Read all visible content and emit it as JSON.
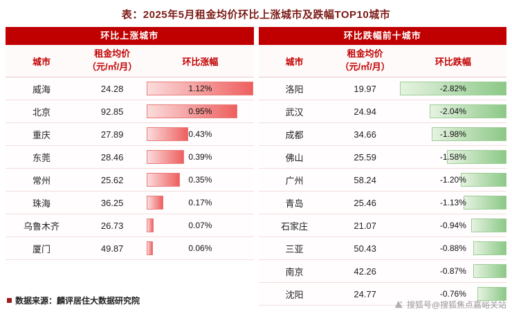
{
  "title": "表：2025年5月租金均价环比上涨城市及跌幅TOP10城市",
  "colors": {
    "header_bg": "#c00000",
    "header_text": "#ffffff",
    "subheader_text": "#c00000",
    "title_text": "#7b1a15",
    "rise_bar_gradient": [
      "#fbdcdc",
      "#ee5f5f"
    ],
    "fall_bar_gradient": [
      "#e6f3e1",
      "#8cc887"
    ],
    "row_divider": "#f3dddd"
  },
  "tables": {
    "rise": {
      "title": "环比上涨城市",
      "columns": {
        "city": "城市",
        "price_line1": "租金均价",
        "price_line2": "（元/㎡/月）",
        "change": "环比涨幅"
      },
      "rows": [
        {
          "city": "威海",
          "price": "24.28",
          "change": "1.12%",
          "value": 1.12
        },
        {
          "city": "北京",
          "price": "92.85",
          "change": "0.95%",
          "value": 0.95
        },
        {
          "city": "重庆",
          "price": "27.89",
          "change": "0.43%",
          "value": 0.43
        },
        {
          "city": "东莞",
          "price": "28.46",
          "change": "0.39%",
          "value": 0.39
        },
        {
          "city": "常州",
          "price": "25.62",
          "change": "0.35%",
          "value": 0.35
        },
        {
          "city": "珠海",
          "price": "36.25",
          "change": "0.17%",
          "value": 0.17
        },
        {
          "city": "乌鲁木齐",
          "price": "26.73",
          "change": "0.07%",
          "value": 0.07
        },
        {
          "city": "厦门",
          "price": "49.87",
          "change": "0.06%",
          "value": 0.06
        }
      ]
    },
    "fall": {
      "title": "环比跌幅前十城市",
      "columns": {
        "city": "城市",
        "price_line1": "租金均价",
        "price_line2": "（元/㎡/月）",
        "change": "环比跌幅"
      },
      "rows": [
        {
          "city": "洛阳",
          "price": "19.97",
          "change": "-2.82%",
          "value": -2.82
        },
        {
          "city": "武汉",
          "price": "24.94",
          "change": "-2.04%",
          "value": -2.04
        },
        {
          "city": "成都",
          "price": "34.66",
          "change": "-1.98%",
          "value": -1.98
        },
        {
          "city": "佛山",
          "price": "25.59",
          "change": "-1.58%",
          "value": -1.58
        },
        {
          "city": "广州",
          "price": "58.24",
          "change": "-1.20%",
          "value": -1.2
        },
        {
          "city": "青岛",
          "price": "25.46",
          "change": "-1.13%",
          "value": -1.13
        },
        {
          "city": "石家庄",
          "price": "21.07",
          "change": "-0.94%",
          "value": -0.94
        },
        {
          "city": "三亚",
          "price": "50.43",
          "change": "-0.88%",
          "value": -0.88
        },
        {
          "city": "南京",
          "price": "42.26",
          "change": "-0.87%",
          "value": -0.87
        },
        {
          "city": "沈阳",
          "price": "24.77",
          "change": "-0.76%",
          "value": -0.76
        }
      ]
    }
  },
  "footer": {
    "source": "数据来源：麟评居住大数据研究院"
  },
  "watermark": {
    "label": "搜狐号@搜狐焦点嘉峪关站"
  },
  "chart_data": [
    {
      "type": "bar",
      "orientation": "horizontal",
      "title": "环比上涨城市",
      "categories": [
        "威海",
        "北京",
        "重庆",
        "东莞",
        "常州",
        "珠海",
        "乌鲁木齐",
        "厦门"
      ],
      "series": [
        {
          "name": "租金均价（元/㎡/月）",
          "values": [
            24.28,
            92.85,
            27.89,
            28.46,
            25.62,
            36.25,
            26.73,
            49.87
          ]
        },
        {
          "name": "环比涨幅(%)",
          "values": [
            1.12,
            0.95,
            0.43,
            0.39,
            0.35,
            0.17,
            0.07,
            0.06
          ]
        }
      ],
      "xlim": [
        0,
        1.12
      ],
      "grid": false,
      "legend_position": "none"
    },
    {
      "type": "bar",
      "orientation": "horizontal",
      "title": "环比跌幅前十城市",
      "categories": [
        "洛阳",
        "武汉",
        "成都",
        "佛山",
        "广州",
        "青岛",
        "石家庄",
        "三亚",
        "南京",
        "沈阳"
      ],
      "series": [
        {
          "name": "租金均价（元/㎡/月）",
          "values": [
            19.97,
            24.94,
            34.66,
            25.59,
            58.24,
            25.46,
            21.07,
            50.43,
            42.26,
            24.77
          ]
        },
        {
          "name": "环比跌幅(%)",
          "values": [
            -2.82,
            -2.04,
            -1.98,
            -1.58,
            -1.2,
            -1.13,
            -0.94,
            -0.88,
            -0.87,
            -0.76
          ]
        }
      ],
      "xlim": [
        -2.82,
        0
      ],
      "grid": false,
      "legend_position": "none"
    }
  ]
}
